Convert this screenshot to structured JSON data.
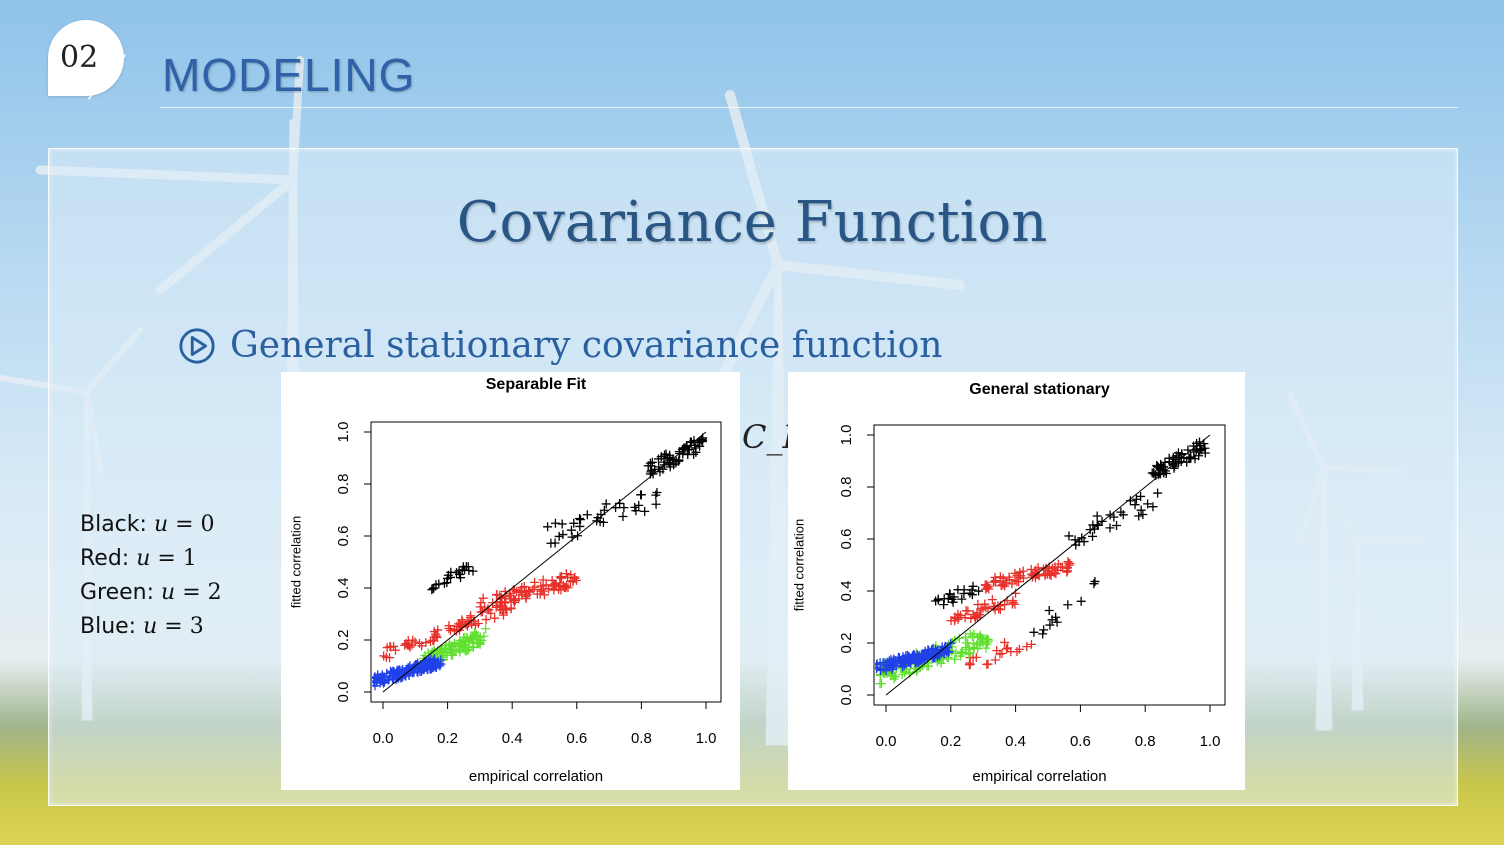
{
  "header": {
    "section_number": "02",
    "section_title": "MODELING"
  },
  "slide": {
    "heading": "Covariance Function",
    "bullet": "General stationary covariance function",
    "formula_fragment": "C_FS"
  },
  "legend": [
    {
      "color_name": "Black",
      "math_var": "u",
      "eq": "=",
      "value": "0"
    },
    {
      "color_name": "Red",
      "math_var": "u",
      "eq": "=",
      "value": "1"
    },
    {
      "color_name": "Green",
      "math_var": "u",
      "eq": "=",
      "value": "2"
    },
    {
      "color_name": "Blue",
      "math_var": "u",
      "eq": "=",
      "value": "3"
    }
  ],
  "colors": {
    "accent": "#2f62a8",
    "u0": "#000000",
    "u1": "#e8302a",
    "u2": "#62e030",
    "u3": "#2040e8"
  },
  "chart_data": [
    {
      "type": "scatter",
      "title": "Separable Fit",
      "xlabel": "empirical correlation",
      "ylabel": "fitted correlation",
      "xlim": [
        0.0,
        1.0
      ],
      "ylim": [
        0.0,
        1.0
      ],
      "xticks": [
        "0.0",
        "0.2",
        "0.4",
        "0.6",
        "0.8",
        "1.0"
      ],
      "yticks": [
        "0.0",
        "0.2",
        "0.4",
        "0.6",
        "0.8",
        "1.0"
      ],
      "reference_line": "y = x",
      "series": [
        {
          "name": "u = 0",
          "color": "#000000",
          "clusters": [
            {
              "x": [
                0.82,
                0.99
              ],
              "y": [
                0.82,
                0.99
              ],
              "n": 60
            },
            {
              "x": [
                0.5,
                0.85
              ],
              "y": [
                0.55,
                0.8
              ],
              "n": 35
            },
            {
              "x": [
                0.14,
                0.28
              ],
              "y": [
                0.38,
                0.5
              ],
              "n": 22
            }
          ]
        },
        {
          "name": "u = 1",
          "color": "#e8302a",
          "clusters": [
            {
              "x": [
                0.3,
                0.6
              ],
              "y": [
                0.3,
                0.47
              ],
              "n": 90
            },
            {
              "x": [
                0.2,
                0.4
              ],
              "y": [
                0.22,
                0.35
              ],
              "n": 40
            },
            {
              "x": [
                0.0,
                0.18
              ],
              "y": [
                0.12,
                0.25
              ],
              "n": 30
            }
          ]
        },
        {
          "name": "u = 2",
          "color": "#62e030",
          "clusters": [
            {
              "x": [
                0.12,
                0.32
              ],
              "y": [
                0.08,
                0.25
              ],
              "n": 110
            }
          ]
        },
        {
          "name": "u = 3",
          "color": "#2040e8",
          "clusters": [
            {
              "x": [
                -0.03,
                0.18
              ],
              "y": [
                0.02,
                0.14
              ],
              "n": 160
            }
          ]
        }
      ]
    },
    {
      "type": "scatter",
      "title": "General stationary",
      "xlabel": "empirical correlation",
      "ylabel": "fitted correlation",
      "xlim": [
        0.0,
        1.0
      ],
      "ylim": [
        0.0,
        1.0
      ],
      "xticks": [
        "0.0",
        "0.2",
        "0.4",
        "0.6",
        "0.8",
        "1.0"
      ],
      "yticks": [
        "0.0",
        "0.2",
        "0.4",
        "0.6",
        "0.8",
        "1.0"
      ],
      "reference_line": "y = x",
      "series": [
        {
          "name": "u = 0",
          "color": "#000000",
          "clusters": [
            {
              "x": [
                0.82,
                0.99
              ],
              "y": [
                0.82,
                0.99
              ],
              "n": 60
            },
            {
              "x": [
                0.55,
                0.85
              ],
              "y": [
                0.55,
                0.8
              ],
              "n": 30
            },
            {
              "x": [
                0.15,
                0.3
              ],
              "y": [
                0.32,
                0.45
              ],
              "n": 20
            },
            {
              "x": [
                0.45,
                0.65
              ],
              "y": [
                0.2,
                0.45
              ],
              "n": 12
            }
          ]
        },
        {
          "name": "u = 1",
          "color": "#e8302a",
          "clusters": [
            {
              "x": [
                0.3,
                0.58
              ],
              "y": [
                0.4,
                0.52
              ],
              "n": 70
            },
            {
              "x": [
                0.18,
                0.4
              ],
              "y": [
                0.25,
                0.4
              ],
              "n": 40
            },
            {
              "x": [
                0.25,
                0.45
              ],
              "y": [
                0.08,
                0.25
              ],
              "n": 20
            }
          ]
        },
        {
          "name": "u = 2",
          "color": "#62e030",
          "clusters": [
            {
              "x": [
                -0.02,
                0.32
              ],
              "y": [
                0.04,
                0.26
              ],
              "n": 130
            }
          ]
        },
        {
          "name": "u = 3",
          "color": "#2040e8",
          "clusters": [
            {
              "x": [
                -0.03,
                0.2
              ],
              "y": [
                0.08,
                0.2
              ],
              "n": 150
            }
          ]
        }
      ]
    }
  ]
}
